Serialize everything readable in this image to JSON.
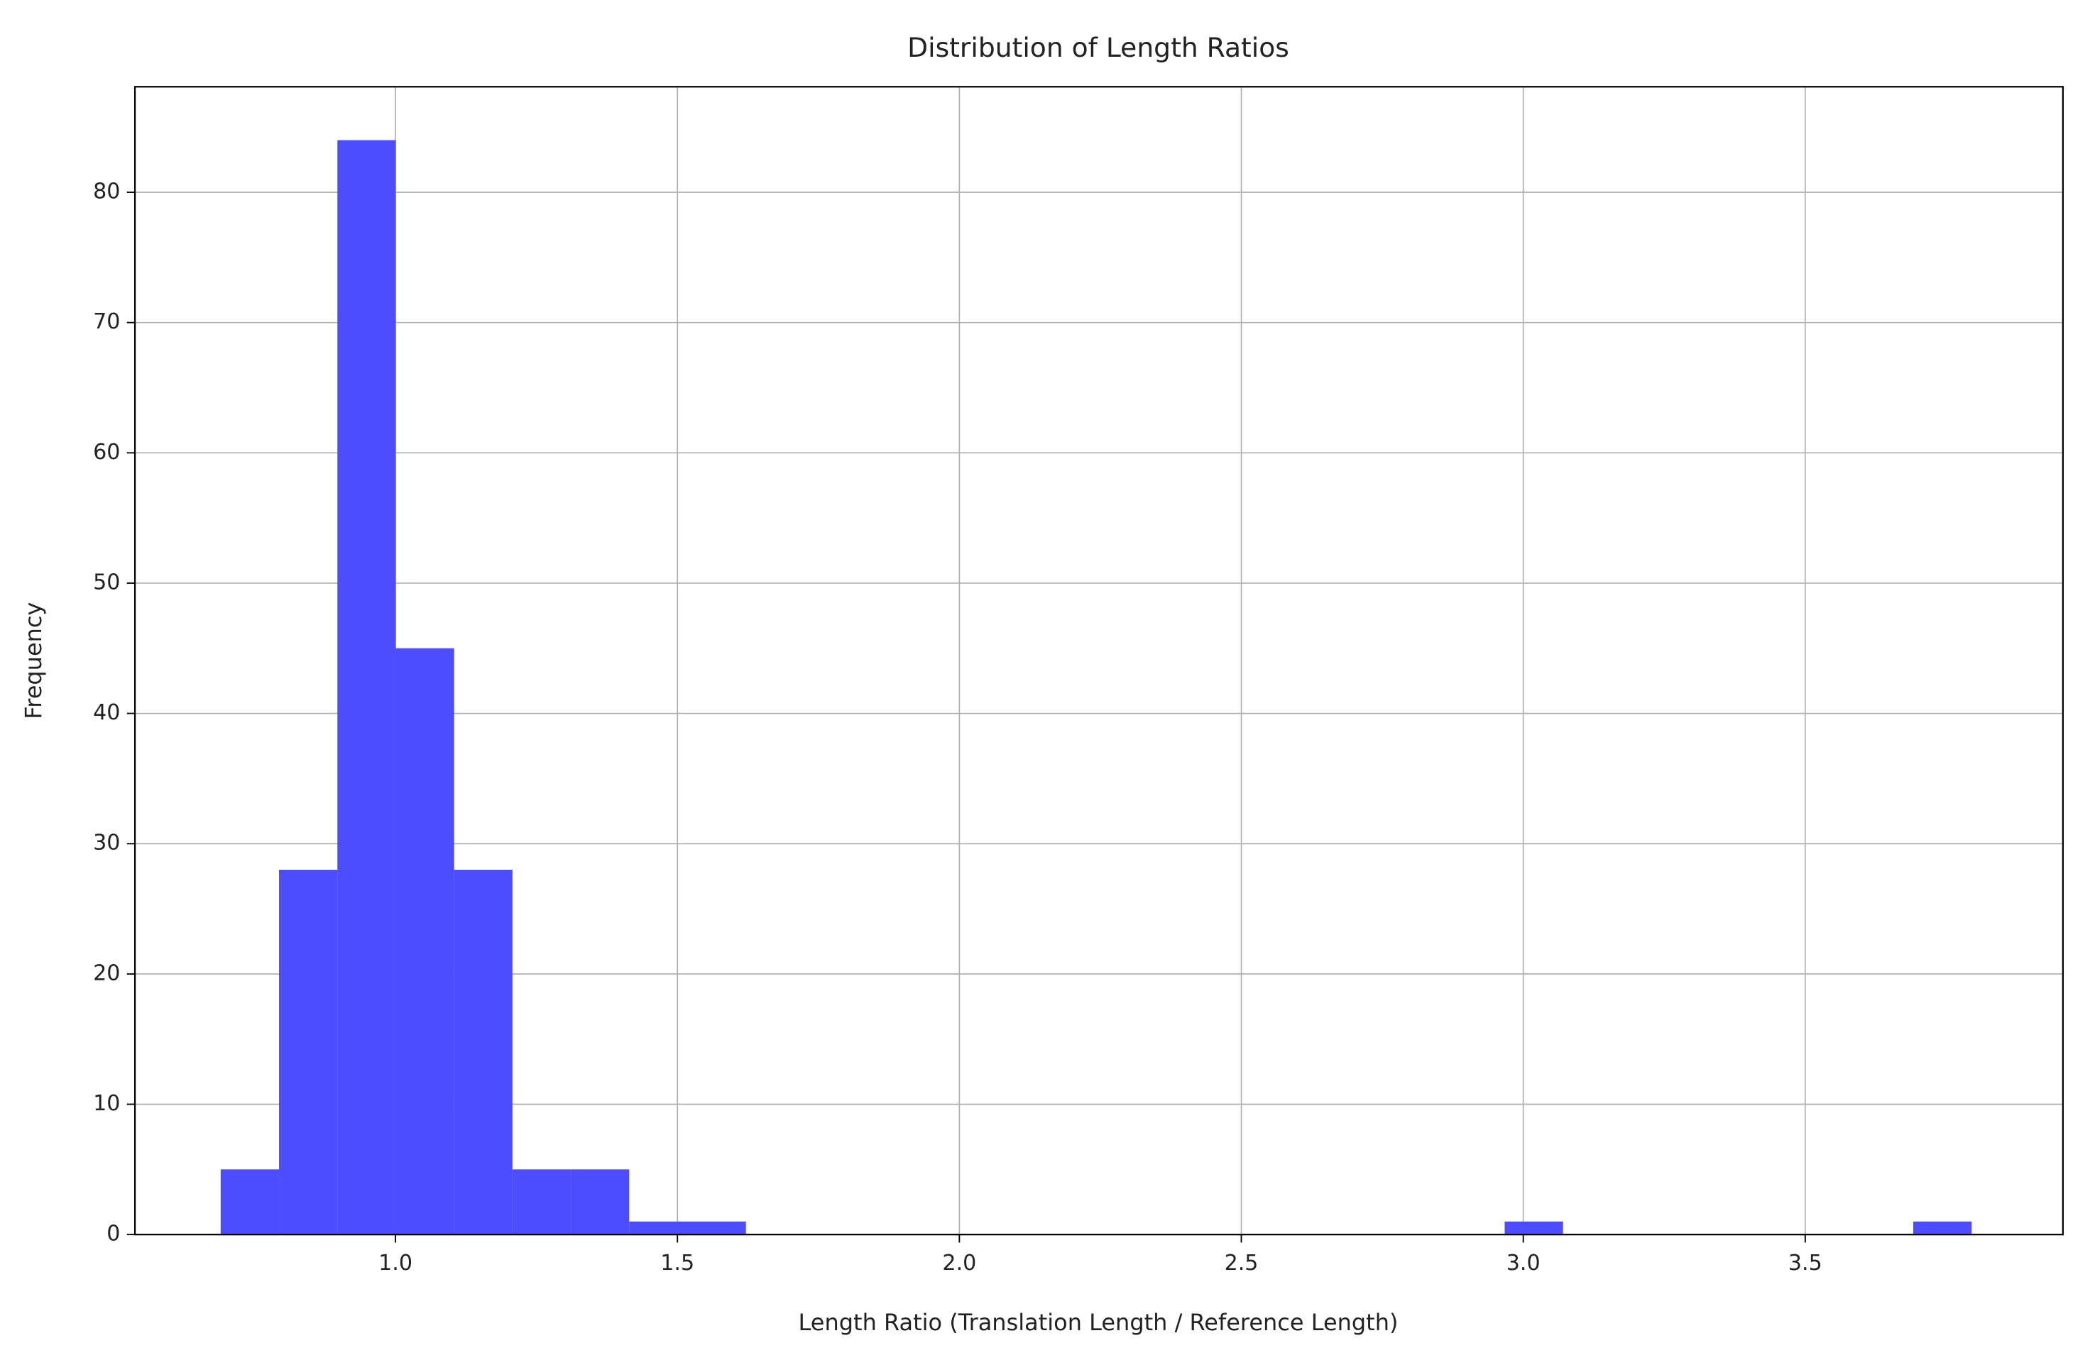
{
  "chart_data": {
    "type": "histogram",
    "title": "Distribution of Length Ratios",
    "x_label": "Length Ratio (Translation Length / Reference Length)",
    "y_label": "Frequency",
    "bins": [
      0.69,
      0.7935,
      0.897,
      1.0005,
      1.104,
      1.2075,
      1.311,
      1.4145,
      1.518,
      1.6215,
      1.725,
      1.8285,
      1.932,
      2.0355,
      2.139,
      2.2425,
      2.346,
      2.4495,
      2.553,
      2.6565,
      2.76,
      2.8635,
      2.967,
      3.0705,
      3.174,
      3.2775,
      3.381,
      3.4845,
      3.588,
      3.6915,
      3.795
    ],
    "values": [
      5,
      28,
      84,
      45,
      28,
      5,
      5,
      1,
      1,
      0,
      0,
      0,
      0,
      0,
      0,
      0,
      0,
      0,
      0,
      0,
      0,
      0,
      1,
      0,
      0,
      0,
      0,
      0,
      0,
      1
    ],
    "color": "#4d4dff",
    "xlim": [
      0.538,
      3.957
    ],
    "xticks": [
      {
        "value": 1.0,
        "label": "1.0"
      },
      1.5,
      {
        "value": 2.0,
        "label": "2.0"
      },
      2.5,
      {
        "value": 3.0,
        "label": "3.0"
      },
      3.5
    ],
    "ylim": [
      0,
      88.1
    ],
    "yticks": [
      0,
      10,
      20,
      30,
      40,
      50,
      60,
      70,
      80
    ],
    "grid": true
  }
}
